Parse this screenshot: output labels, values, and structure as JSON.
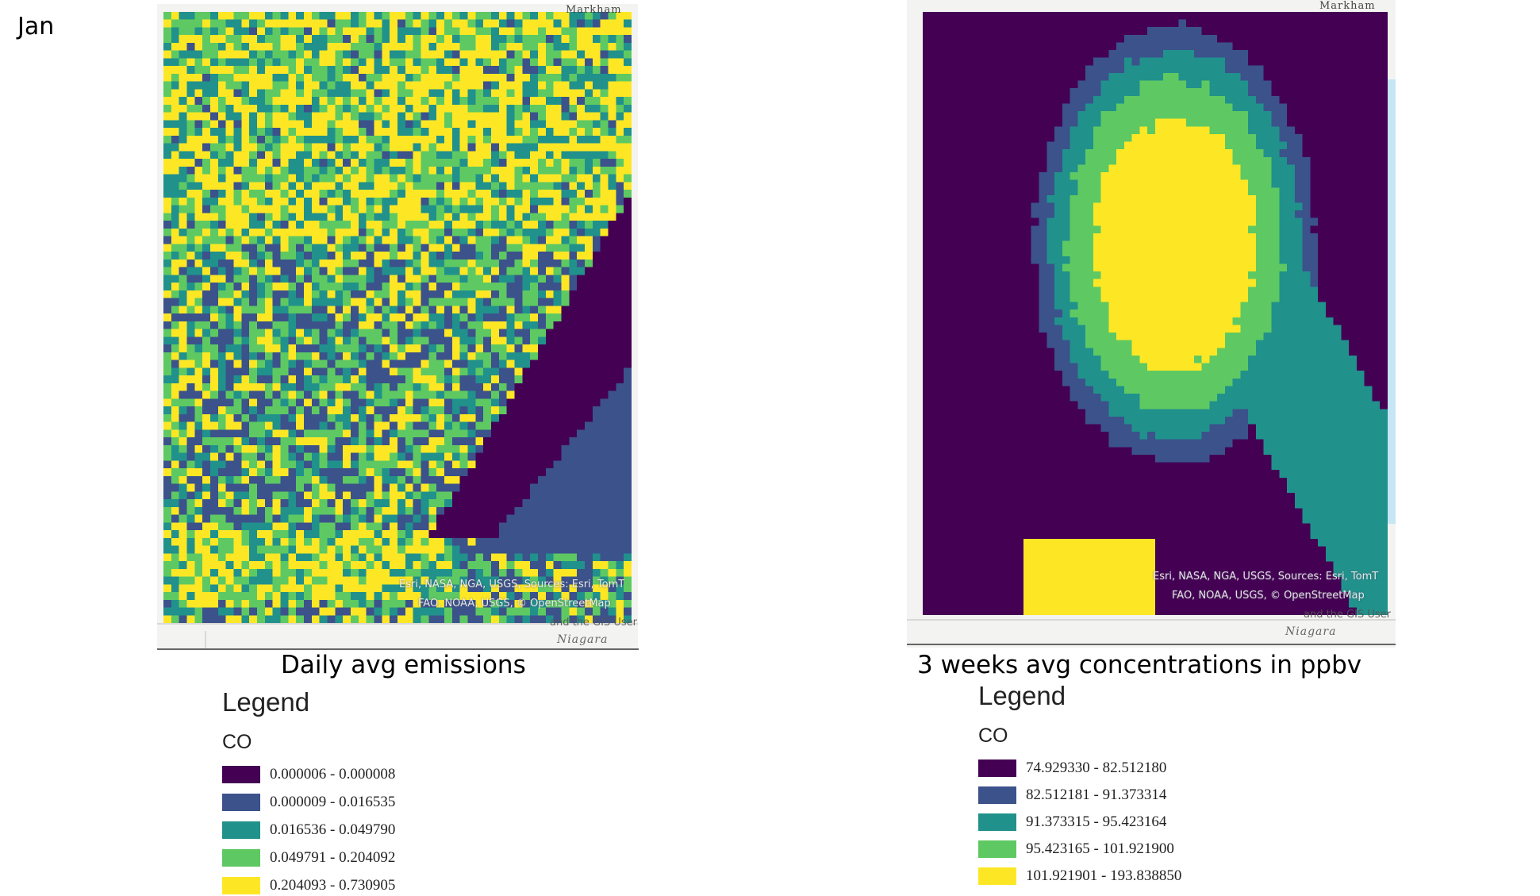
{
  "month_label": "Jan",
  "colors": {
    "c1": "#440154",
    "c2": "#3b528b",
    "c3": "#21918c",
    "c4": "#5ec962",
    "c5": "#fde725",
    "water": "#c7e6f5"
  },
  "left_panel": {
    "caption": "Daily avg emissions",
    "place_top": "Markham",
    "place_bottom": "Niagara",
    "attribution": [
      "Esri, NASA, NGA, USGS, Sources: Esri, TomT",
      "FAO, NOAA, USGS, © OpenStreetMap",
      "and the GIS User"
    ],
    "legend": {
      "title": "Legend",
      "subtitle": "CO",
      "items": [
        {
          "label": "0.000006 - 0.000008",
          "color": "#440154"
        },
        {
          "label": "0.000009 - 0.016535",
          "color": "#3b528b"
        },
        {
          "label": "0.016536 - 0.049790",
          "color": "#21918c"
        },
        {
          "label": "0.049791 - 0.204092",
          "color": "#5ec962"
        },
        {
          "label": "0.204093 - 0.730905",
          "color": "#fde725"
        }
      ]
    }
  },
  "right_panel": {
    "caption": "3 weeks avg concentrations in ppbv",
    "place_top": "Markham",
    "place_bottom": "Niagara",
    "attribution": [
      "Esri, NASA, NGA, USGS, Sources: Esri, TomT",
      "FAO, NOAA, USGS, © OpenStreetMap",
      "and the GIS User"
    ],
    "legend": {
      "title": "Legend",
      "subtitle": "CO",
      "items": [
        {
          "label": "74.929330 - 82.512180",
          "color": "#440154"
        },
        {
          "label": "82.512181 - 91.373314",
          "color": "#3b528b"
        },
        {
          "label": "91.373315 - 95.423164",
          "color": "#21918c"
        },
        {
          "label": "95.423165 - 101.921900",
          "color": "#5ec962"
        },
        {
          "label": "101.921901 - 193.838850",
          "color": "#fde725"
        }
      ]
    }
  }
}
